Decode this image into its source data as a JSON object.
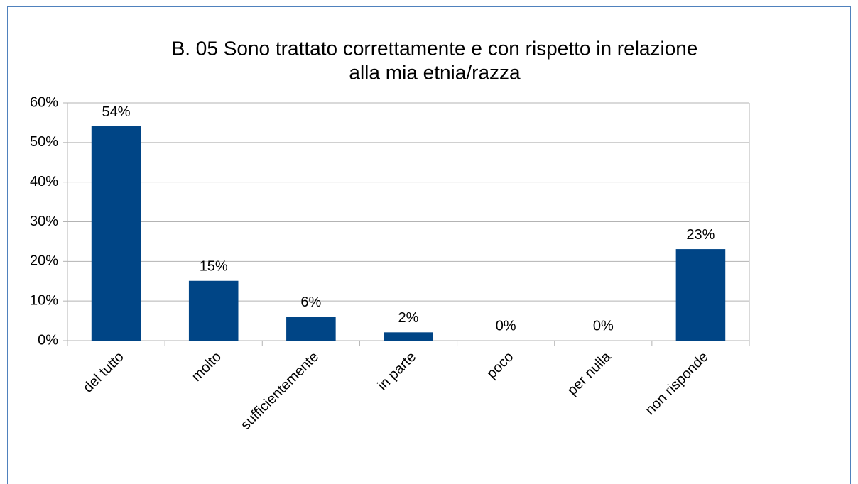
{
  "chart_data": {
    "type": "bar",
    "title": [
      "B. 05 Sono trattato correttamente e con rispetto in relazione",
      "alla mia etnia/razza"
    ],
    "categories": [
      "del tutto",
      "molto",
      "sufficientemente",
      "in parte",
      "poco",
      "per nulla",
      "non risponde"
    ],
    "values": [
      54,
      15,
      6,
      2,
      0,
      0,
      23
    ],
    "value_labels": [
      "54%",
      "15%",
      "6%",
      "2%",
      "0%",
      "0%",
      "23%"
    ],
    "color": "#004586",
    "ylim": [
      0,
      60
    ],
    "yticks": [
      {
        "value": 0,
        "label": "0%"
      },
      {
        "value": 10,
        "label": "10%"
      },
      {
        "value": 20,
        "label": "20%"
      },
      {
        "value": 30,
        "label": "30%"
      },
      {
        "value": 40,
        "label": "40%"
      },
      {
        "value": 50,
        "label": "50%"
      },
      {
        "value": 60,
        "label": "60%"
      }
    ],
    "grid": true
  }
}
